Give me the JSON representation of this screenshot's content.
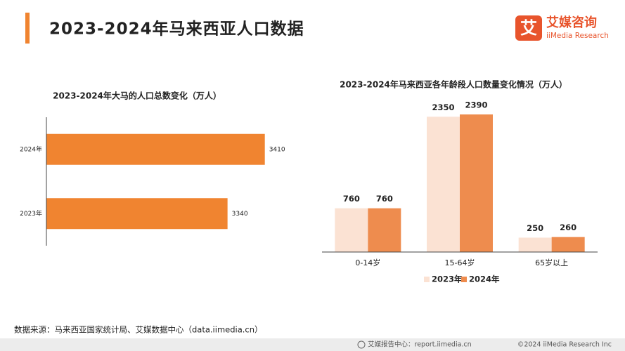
{
  "header": {
    "title": "2023-2024年马来西亚人口数据",
    "logo": {
      "mark": "艾",
      "name": "艾媒咨询",
      "sub": "iiMedia Research"
    }
  },
  "chart_data": [
    {
      "type": "hbar",
      "title": "2023-2024年大马的人口总数变化（万人）",
      "categories": [
        "2024年",
        "2023年"
      ],
      "values": [
        3410,
        3340
      ],
      "color": "#f08430",
      "xlim": [
        3000,
        3450
      ]
    },
    {
      "type": "bar",
      "title": "2023-2024年马来西亚各年龄段人口数量变化情况（万人）",
      "categories": [
        "0-14岁",
        "15-64岁",
        "65岁以上"
      ],
      "series": [
        {
          "name": "2023年",
          "color": "#fbe2d3",
          "values": [
            760,
            2350,
            250
          ]
        },
        {
          "name": "2024年",
          "color": "#ee8c4e",
          "values": [
            760,
            2390,
            260
          ]
        }
      ],
      "ylim": [
        0,
        2500
      ],
      "legend": "bottom"
    }
  ],
  "source": "数据来源：马来西亚国家统计局、艾媒数据中心（data.iimedia.cn）",
  "footer": {
    "left": "艾媒报告中心：report.iimedia.cn",
    "right": "©2024  iiMedia Research  Inc"
  }
}
